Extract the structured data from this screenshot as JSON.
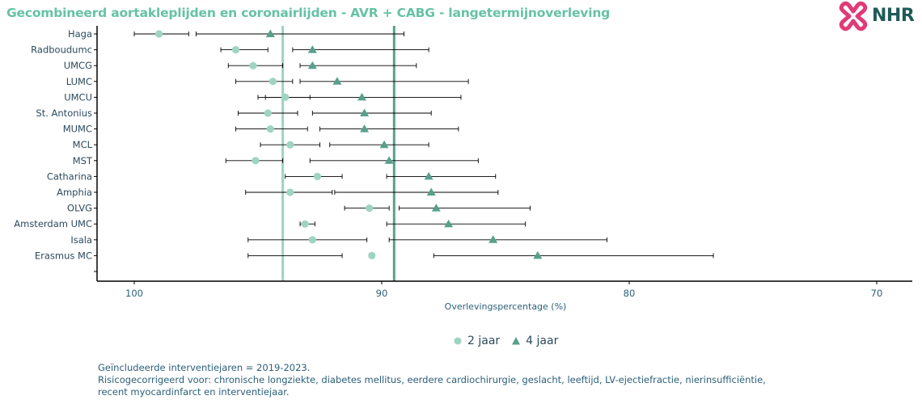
{
  "title": "Gecombineerd aortakleplijden en coronairlijden - AVR + CABG - langetermijnoverleving",
  "logo": {
    "text": "NHR",
    "icon": "nhr-cross-logo-icon"
  },
  "colors": {
    "title": "#66c2a5",
    "two_year": "#9dd5c0",
    "four_year": "#56a08c",
    "ref_two_year": "#9dd5c0",
    "ref_four_year": "#56a08c",
    "axis_text": "#2b5f7a",
    "label_text": "#2b4a5e"
  },
  "chart_data": {
    "type": "scatter",
    "subtype": "forest-plot",
    "title": "Gecombineerd aortakleplijden en coronairlijden - AVR + CABG - langetermijnoverleving",
    "xlabel": "Overlevingspercentage (%)",
    "ylabel": "",
    "xlim": [
      100,
      69
    ],
    "x_reversed": true,
    "x_ticks": [
      100,
      90,
      80,
      70
    ],
    "grid": false,
    "legend_position": "bottom",
    "categories": [
      "Haga",
      "Radboudumc",
      "UMCG",
      "LUMC",
      "UMCU",
      "St. Antonius",
      "MUMC",
      "MCL",
      "MST",
      "Catharina",
      "Amphia",
      "OLVG",
      "Amsterdam UMC",
      "Isala",
      "Erasmus MC"
    ],
    "series": [
      {
        "name": "2 jaar",
        "marker": "circle",
        "values": [
          99.0,
          95.9,
          95.2,
          94.4,
          93.9,
          94.6,
          94.5,
          93.7,
          95.1,
          92.6,
          93.7,
          90.5,
          93.1,
          92.8,
          90.4
        ],
        "lower": [
          97.8,
          94.6,
          94.0,
          93.6,
          92.9,
          93.4,
          93.0,
          92.5,
          94.0,
          91.6,
          92.0,
          89.7,
          92.7,
          90.6,
          91.6
        ],
        "upper": [
          100.0,
          96.5,
          96.2,
          95.9,
          95.0,
          95.8,
          95.9,
          94.9,
          96.3,
          93.9,
          95.5,
          91.5,
          93.3,
          95.4,
          95.4
        ]
      },
      {
        "name": "4 jaar",
        "marker": "triangle",
        "values": [
          94.5,
          92.8,
          92.8,
          91.8,
          90.8,
          90.7,
          90.7,
          89.9,
          89.7,
          88.1,
          88.0,
          87.8,
          87.3,
          85.5,
          83.7
        ],
        "lower": [
          89.1,
          88.1,
          88.6,
          86.5,
          86.8,
          88.0,
          86.9,
          88.1,
          86.1,
          85.4,
          85.3,
          84.0,
          84.2,
          80.9,
          76.6
        ],
        "upper": [
          97.5,
          93.6,
          93.3,
          93.3,
          94.7,
          92.8,
          92.5,
          92.1,
          92.9,
          89.8,
          91.9,
          89.3,
          89.8,
          89.7,
          87.9
        ]
      }
    ],
    "reference_lines": [
      {
        "series": "2 jaar",
        "value": 94.0
      },
      {
        "series": "4 jaar",
        "value": 89.5
      }
    ]
  },
  "legend": {
    "items": [
      {
        "label": "2 jaar",
        "marker": "circle"
      },
      {
        "label": "4 jaar",
        "marker": "triangle"
      }
    ]
  },
  "footnotes": {
    "line1": "Geïncludeerde interventiejaren = 2019-2023.",
    "line2": "Risicogecorrigeerd voor: chronische longziekte, diabetes mellitus, eerdere cardiochirurgie, geslacht, leeftijd, LV-ejectiefractie, nierinsufficiëntie,",
    "line3": "recent myocardinfarct en interventiejaar."
  }
}
